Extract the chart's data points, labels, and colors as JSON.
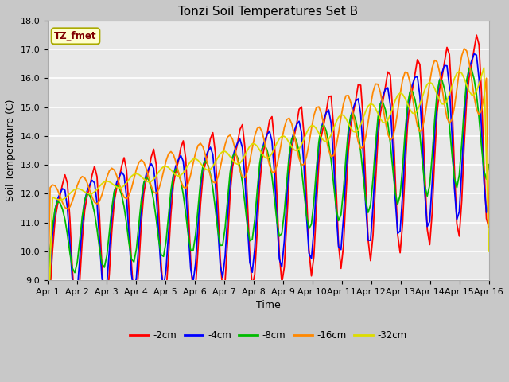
{
  "title": "Tonzi Soil Temperatures Set B",
  "xlabel": "Time",
  "ylabel": "Soil Temperature (C)",
  "ylim": [
    9.0,
    18.0
  ],
  "yticks": [
    9.0,
    10.0,
    11.0,
    12.0,
    13.0,
    14.0,
    15.0,
    16.0,
    17.0,
    18.0
  ],
  "xtick_labels": [
    "Apr 1",
    "Apr 2",
    "Apr 3",
    "Apr 4",
    "Apr 5",
    "Apr 6",
    "Apr 7",
    "Apr 8",
    "Apr 9",
    "Apr 10",
    "Apr 11",
    "Apr 12",
    "Apr 13",
    "Apr 14",
    "Apr 15",
    "Apr 16"
  ],
  "annotation_text": "TZ_fmet",
  "annotation_color": "#800000",
  "annotation_bg": "#ffffcc",
  "annotation_border": "#aaaa00",
  "series_colors": [
    "#ff0000",
    "#0000ff",
    "#00bb00",
    "#ff8800",
    "#dddd00"
  ],
  "series_labels": [
    "-2cm",
    "-4cm",
    "-8cm",
    "-16cm",
    "-32cm"
  ],
  "fig_bg": "#c8c8c8",
  "plot_bg": "#e8e8e8",
  "grid_color": "#ffffff",
  "title_fontsize": 11,
  "axis_fontsize": 9,
  "tick_fontsize": 8,
  "linewidth": 1.3
}
